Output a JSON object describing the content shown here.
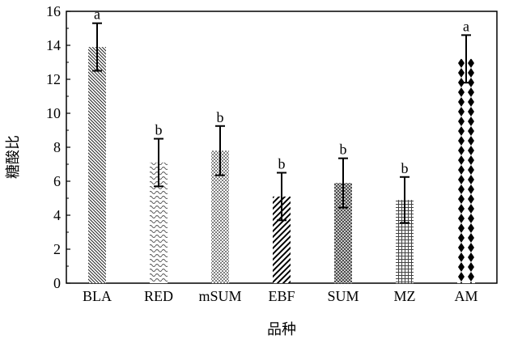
{
  "chart_data": {
    "type": "bar",
    "title": "",
    "xlabel": "品种",
    "ylabel": "糖酸比",
    "ylim": [
      0,
      16
    ],
    "yticks": [
      0,
      2,
      4,
      6,
      8,
      10,
      12,
      14,
      16
    ],
    "grid": false,
    "categories": [
      "BLA",
      "RED",
      "mSUM",
      "EBF",
      "SUM",
      "MZ",
      "AM"
    ],
    "values": [
      13.9,
      7.1,
      7.8,
      5.1,
      5.9,
      4.9,
      13.2
    ],
    "error": [
      1.4,
      1.4,
      1.45,
      1.4,
      1.45,
      1.35,
      1.4
    ],
    "significance": [
      "a",
      "b",
      "b",
      "b",
      "b",
      "b",
      "a"
    ],
    "patterns": [
      "backslash-hatch",
      "wavy-hatch",
      "dots",
      "slash-hatch",
      "crosshatch",
      "grid",
      "diamonds"
    ]
  }
}
